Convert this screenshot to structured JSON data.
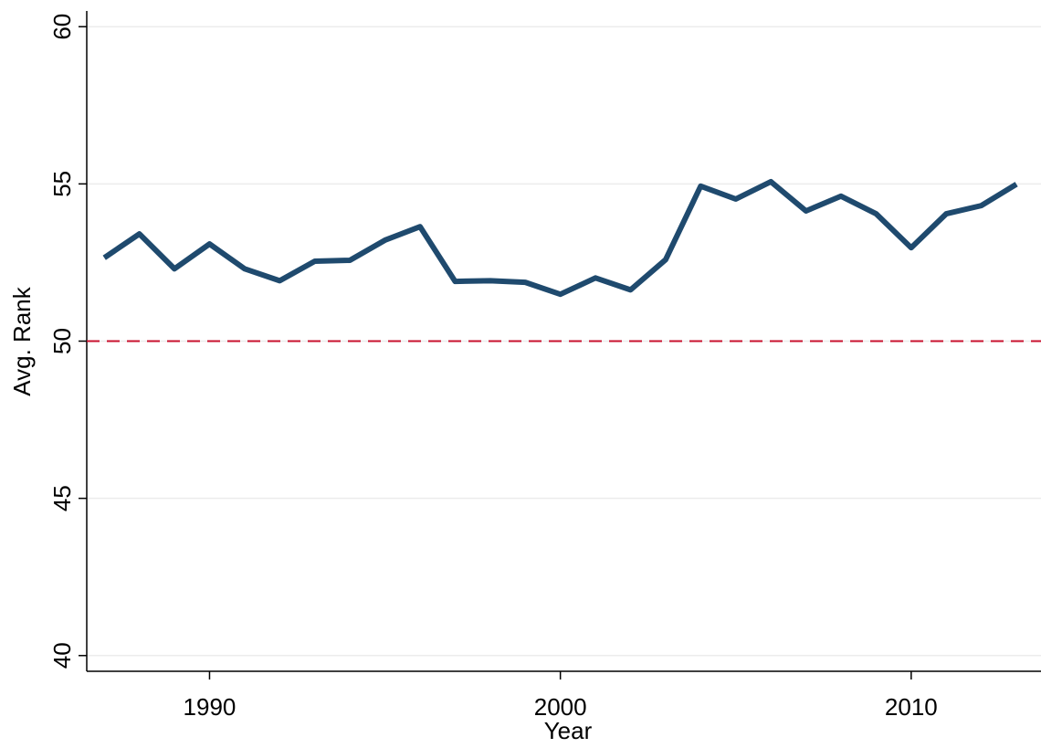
{
  "chart_data": {
    "type": "line",
    "x_label": "Year",
    "y_label": "Avg. Rank",
    "x": [
      1987,
      1988,
      1989,
      1990,
      1991,
      1992,
      1993,
      1994,
      1995,
      1996,
      1997,
      1998,
      1999,
      2000,
      2001,
      2002,
      2003,
      2004,
      2005,
      2006,
      2007,
      2008,
      2009,
      2010,
      2011,
      2012,
      2013
    ],
    "values": [
      52.65,
      53.41,
      52.3,
      53.09,
      52.3,
      51.92,
      52.54,
      52.57,
      53.21,
      53.64,
      51.9,
      51.92,
      51.87,
      51.49,
      52.01,
      51.63,
      52.59,
      54.93,
      54.52,
      55.07,
      54.14,
      54.61,
      54.05,
      52.97,
      54.05,
      54.31,
      54.99
    ],
    "color": "#1f4a6e",
    "xlim": [
      1986.5,
      2013.7
    ],
    "xticks": [
      1990,
      2000,
      2010
    ],
    "ylim": [
      39.5,
      60.5
    ],
    "yticks": [
      40,
      45,
      50,
      55,
      60
    ],
    "grid": true,
    "hline": 50,
    "hline_color": "#c8102e"
  }
}
